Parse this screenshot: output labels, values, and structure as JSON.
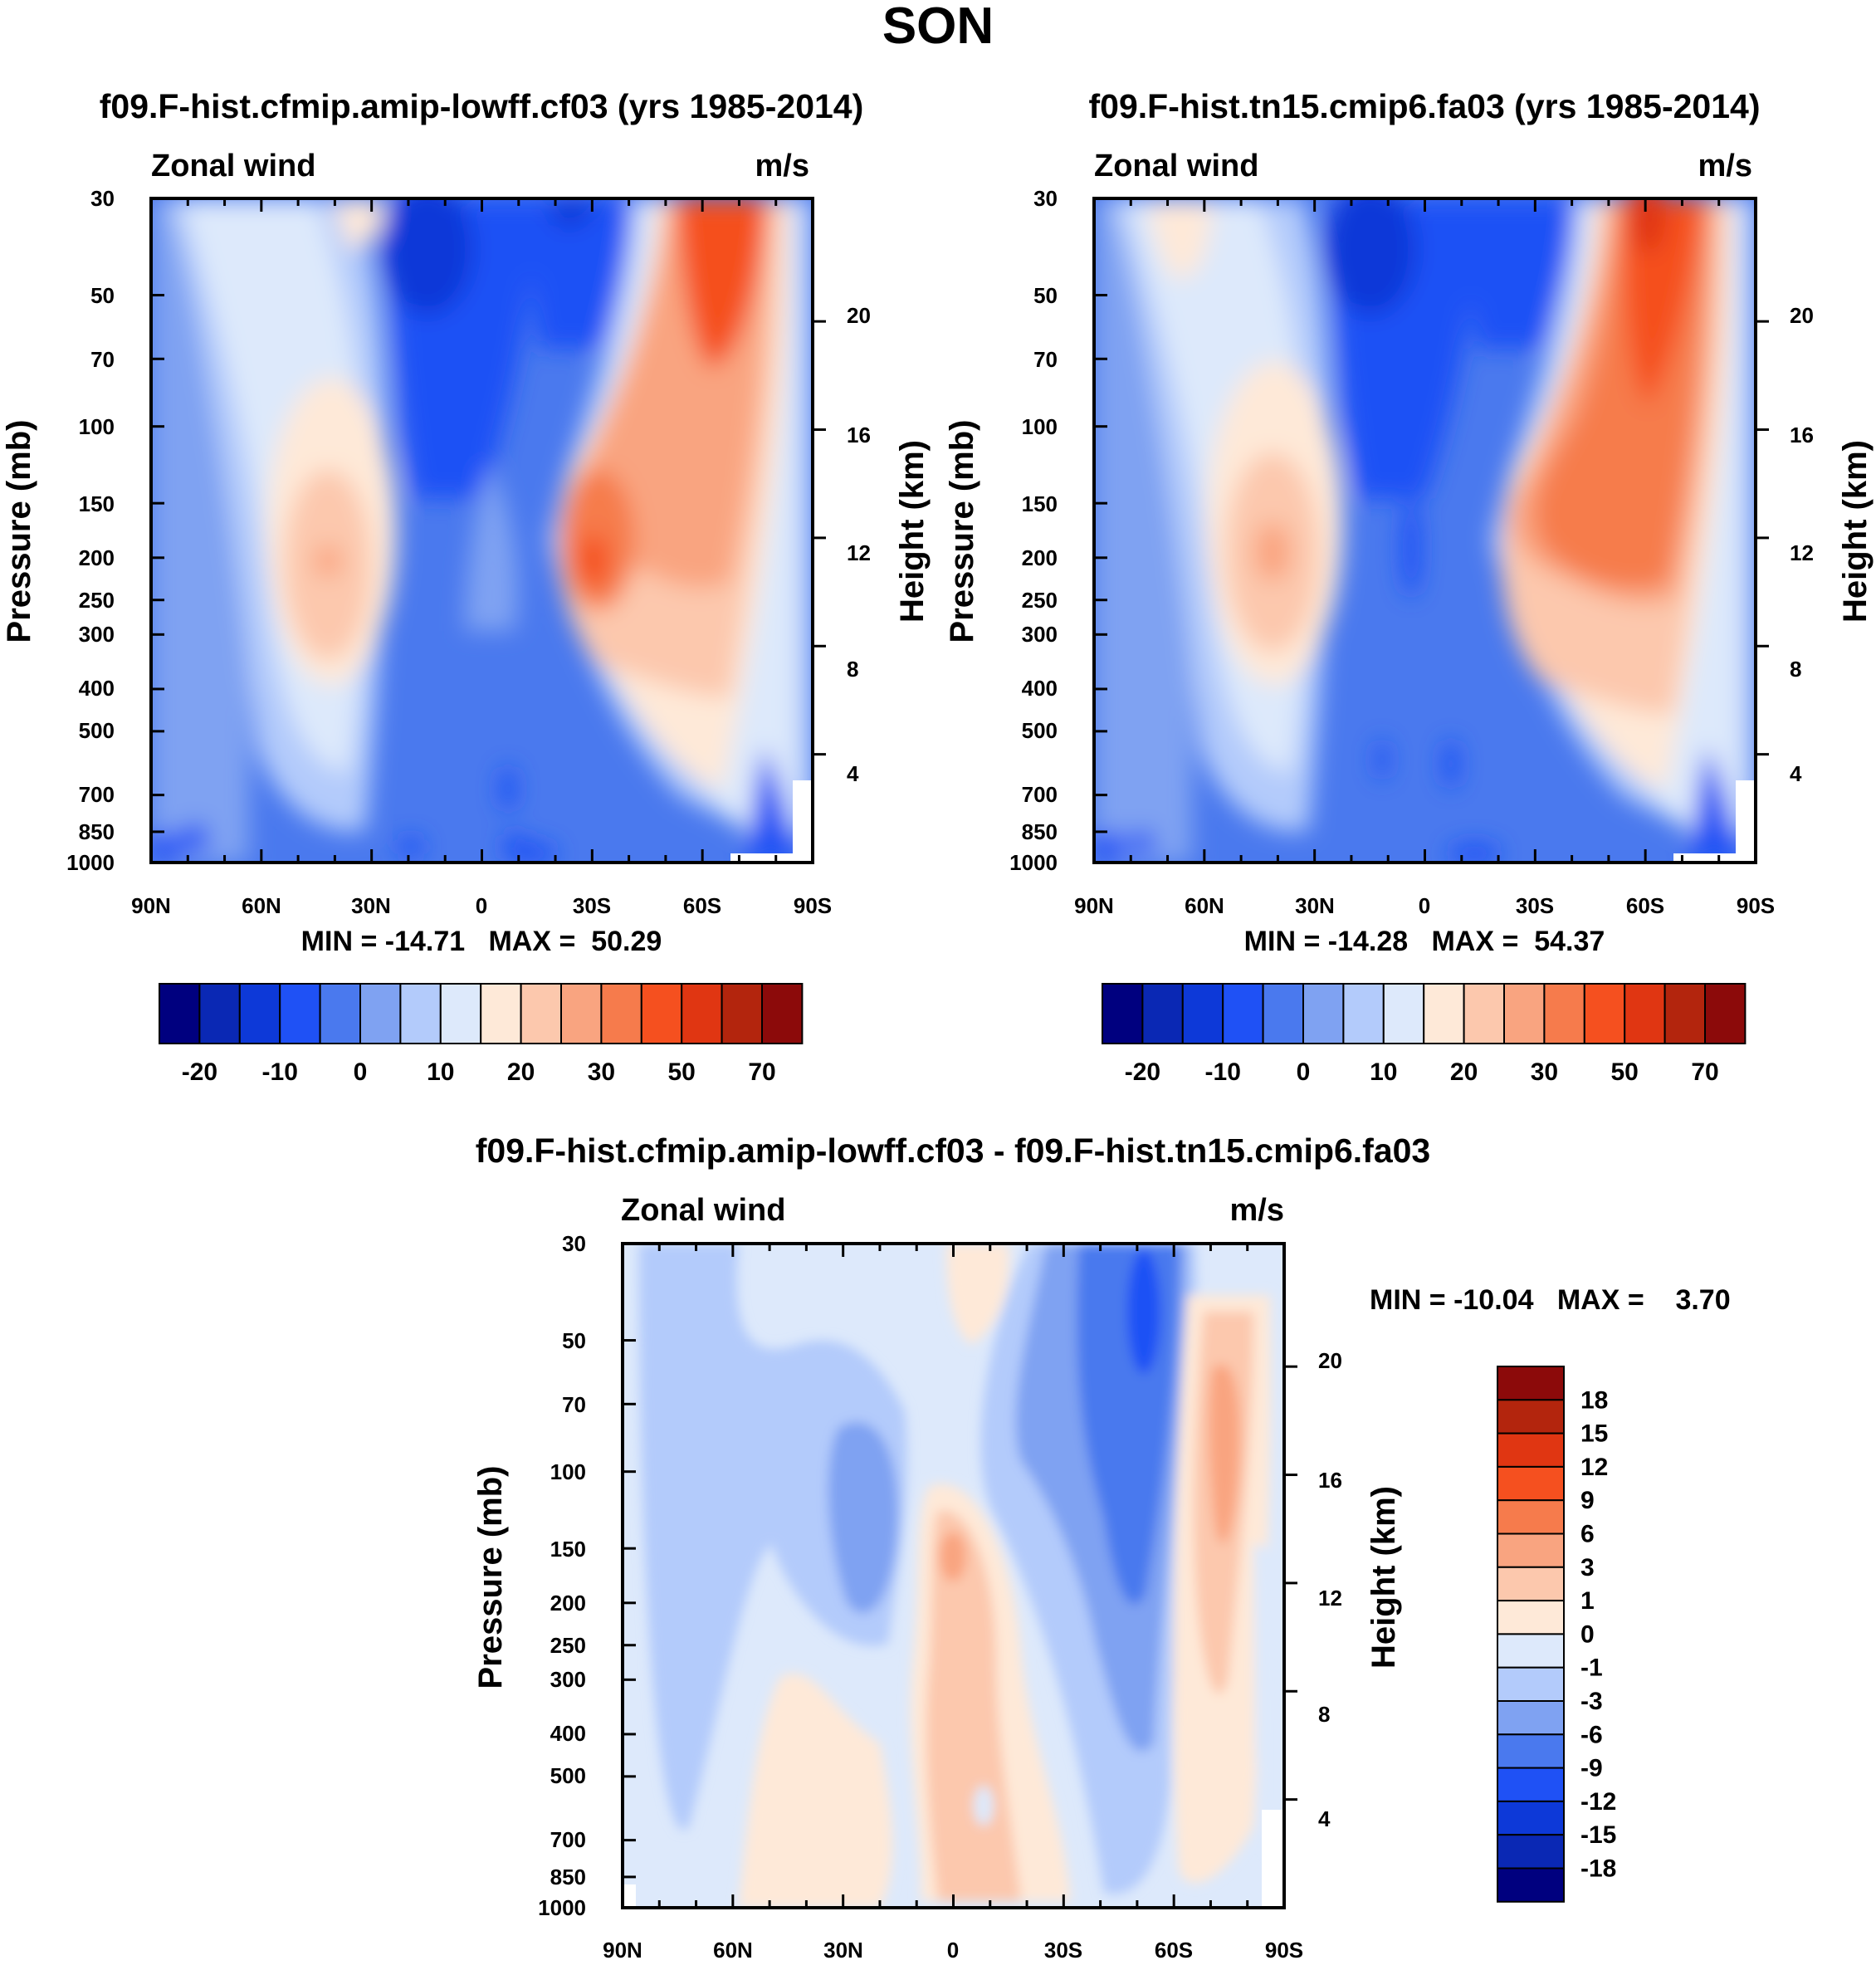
{
  "figure_title": "SON",
  "chart_data": [
    {
      "type": "contour",
      "title": "f09.F-hist.cfmip.amip-lowff.cf03 (yrs 1985-2014)",
      "left_label": "Zonal wind",
      "right_label": "m/s",
      "xlabel": "",
      "ylabel": "Pressure (mb)",
      "y2label": "Height (km)",
      "x_ticks": [
        "90N",
        "60N",
        "30N",
        "0",
        "30S",
        "60S",
        "90S"
      ],
      "y_ticks": [
        30,
        50,
        70,
        100,
        150,
        200,
        250,
        300,
        400,
        500,
        700,
        850,
        1000
      ],
      "y2_ticks": [
        20,
        16,
        12,
        8,
        4
      ],
      "ylim": [
        1000,
        30
      ],
      "stats_text": "MIN = -14.71   MAX =  50.29",
      "min": -14.71,
      "max": 50.29,
      "colorbar": {
        "orientation": "horizontal",
        "levels": [
          -20,
          -15,
          -10,
          -5,
          0,
          5,
          10,
          15,
          20,
          25,
          30,
          40,
          50,
          60,
          70
        ],
        "labels": [
          "-20",
          "-10",
          "0",
          "10",
          "20",
          "30",
          "50",
          "70"
        ],
        "colors": [
          "#00007f",
          "#0a28b4",
          "#0d39d8",
          "#1f51f5",
          "#4a79ee",
          "#7fa2f2",
          "#b3cbfb",
          "#dde9fb",
          "#fee9d8",
          "#fcc8ad",
          "#f9a480",
          "#f67b4c",
          "#f5501f",
          "#e03612",
          "#b3250d",
          "#8c0a0a"
        ]
      }
    },
    {
      "type": "contour",
      "title": "f09.F-hist.tn15.cmip6.fa03 (yrs 1985-2014)",
      "left_label": "Zonal wind",
      "right_label": "m/s",
      "xlabel": "",
      "ylabel": "Pressure (mb)",
      "y2label": "Height (km)",
      "x_ticks": [
        "90N",
        "60N",
        "30N",
        "0",
        "30S",
        "60S",
        "90S"
      ],
      "y_ticks": [
        30,
        50,
        70,
        100,
        150,
        200,
        250,
        300,
        400,
        500,
        700,
        850,
        1000
      ],
      "y2_ticks": [
        20,
        16,
        12,
        8,
        4
      ],
      "ylim": [
        1000,
        30
      ],
      "stats_text": "MIN = -14.28   MAX =  54.37",
      "min": -14.28,
      "max": 54.37,
      "colorbar": {
        "orientation": "horizontal",
        "levels": [
          -20,
          -15,
          -10,
          -5,
          0,
          5,
          10,
          15,
          20,
          25,
          30,
          40,
          50,
          60,
          70
        ],
        "labels": [
          "-20",
          "-10",
          "0",
          "10",
          "20",
          "30",
          "50",
          "70"
        ],
        "colors": [
          "#00007f",
          "#0a28b4",
          "#0d39d8",
          "#1f51f5",
          "#4a79ee",
          "#7fa2f2",
          "#b3cbfb",
          "#dde9fb",
          "#fee9d8",
          "#fcc8ad",
          "#f9a480",
          "#f67b4c",
          "#f5501f",
          "#e03612",
          "#b3250d",
          "#8c0a0a"
        ]
      }
    },
    {
      "type": "contour",
      "title": "f09.F-hist.cfmip.amip-lowff.cf03 - f09.F-hist.tn15.cmip6.fa03",
      "left_label": "Zonal wind",
      "right_label": "m/s",
      "xlabel": "",
      "ylabel": "Pressure (mb)",
      "y2label": "Height (km)",
      "x_ticks": [
        "90N",
        "60N",
        "30N",
        "0",
        "30S",
        "60S",
        "90S"
      ],
      "y_ticks": [
        30,
        50,
        70,
        100,
        150,
        200,
        250,
        300,
        400,
        500,
        700,
        850,
        1000
      ],
      "y2_ticks": [
        20,
        16,
        12,
        8,
        4
      ],
      "ylim": [
        1000,
        30
      ],
      "stats_text": "MIN = -10.04   MAX =    3.70",
      "min": -10.04,
      "max": 3.7,
      "colorbar": {
        "orientation": "vertical",
        "levels": [
          18,
          15,
          12,
          9,
          6,
          3,
          1,
          0,
          -1,
          -3,
          -6,
          -9,
          -12,
          -15,
          -18
        ],
        "labels": [
          "18",
          "15",
          "12",
          "9",
          "6",
          "3",
          "1",
          "0",
          "-1",
          "-3",
          "-6",
          "-9",
          "-12",
          "-15",
          "-18"
        ],
        "colors": [
          "#8c0a0a",
          "#b3250d",
          "#e03612",
          "#f5501f",
          "#f67b4c",
          "#f9a480",
          "#fcc8ad",
          "#fee9d8",
          "#dde9fb",
          "#b3cbfb",
          "#7fa2f2",
          "#4a79ee",
          "#1f51f5",
          "#0d39d8",
          "#0a28b4",
          "#00007f"
        ]
      }
    }
  ]
}
